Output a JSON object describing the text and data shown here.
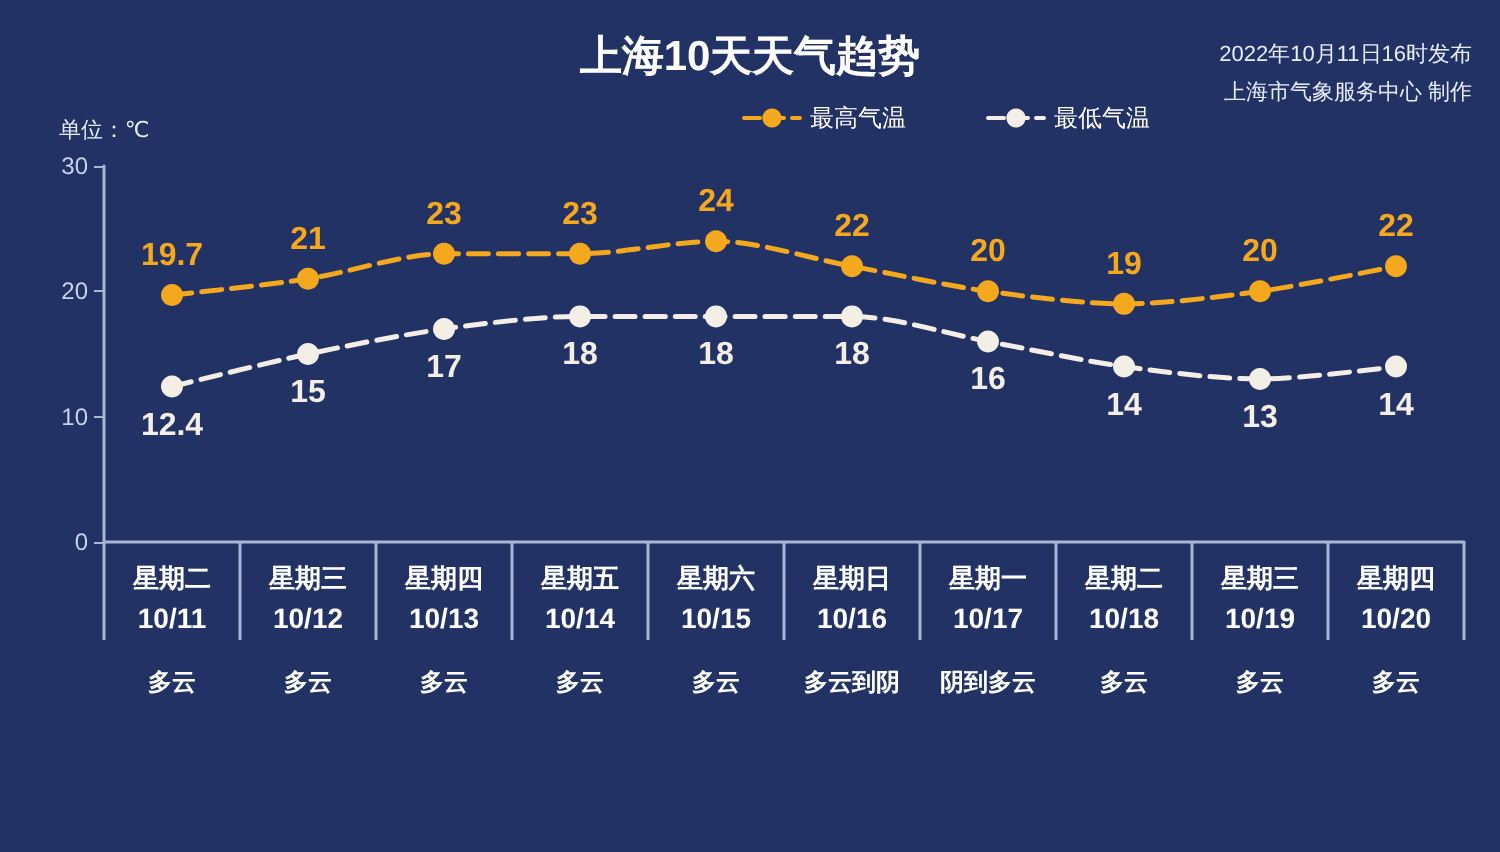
{
  "chart_data": {
    "type": "line",
    "title": "上海10天天气趋势",
    "ylabel": "单位：℃",
    "annotations": [
      "2022年10月11日16时发布",
      "上海市气象服务中心 制作"
    ],
    "categories": [
      "星期二\n10/11\n多云",
      "星期三\n10/12\n多云",
      "星期四\n10/13\n多云",
      "星期五\n10/14\n多云",
      "星期六\n10/15\n多云",
      "星期日\n10/16\n多云到阴",
      "星期一\n10/17\n阴到多云",
      "星期二\n10/18\n多云",
      "星期三\n10/19\n多云",
      "星期四\n10/20\n多云"
    ],
    "series": [
      {
        "name": "最高气温",
        "color": "#f4a81d",
        "values": [
          19.7,
          21,
          23,
          23,
          24,
          22,
          20,
          19,
          20,
          22
        ]
      },
      {
        "name": "最低气温",
        "color": "#f3efe6",
        "values": [
          12.4,
          15,
          17,
          18,
          18,
          18,
          16,
          14,
          13,
          14
        ]
      }
    ],
    "ylim": [
      0,
      30
    ],
    "yticks": [
      0,
      10,
      20,
      30
    ],
    "grid": false,
    "legend": "top right",
    "marker": "circle",
    "line_style": "dashed",
    "data_labels": true
  }
}
